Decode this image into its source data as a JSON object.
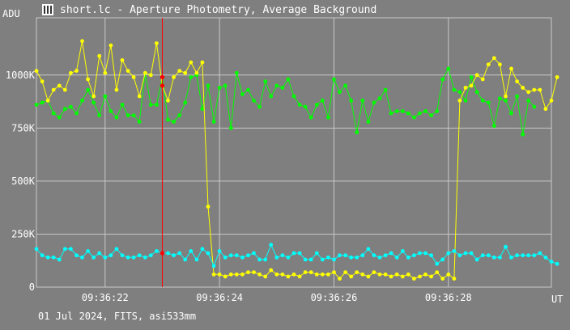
{
  "window": {
    "title": "short.lc - Aperture Photometry, Average Background"
  },
  "footer": {
    "caption": "01 Jul 2024, FITS, asi533mm"
  },
  "colors": {
    "background": "#7f7f7f",
    "grid": "#c8c8c8",
    "marker": "#ff0000"
  },
  "chart_data": {
    "type": "line",
    "ylabel": "ADU",
    "xlabel": "UT",
    "x_ticks": [
      "09:36:22",
      "09:36:24",
      "09:36:26",
      "09:36:28"
    ],
    "y_ticks": [
      "0",
      "250K",
      "500K",
      "750K",
      "1000K"
    ],
    "y_tick_values": [
      0,
      250000,
      500000,
      750000,
      1000000
    ],
    "xlim_s": [
      20.8,
      29.8
    ],
    "ylim": [
      0,
      1270000
    ],
    "x_tick_values_s": [
      22,
      24,
      26,
      28
    ],
    "marker_x_s": 23.0,
    "grid": true,
    "series": [
      {
        "color": "#00ff00",
        "x0_s": 20.8,
        "dx_s": 0.1,
        "values": [
          860000,
          870000,
          880000,
          820000,
          800000,
          840000,
          850000,
          820000,
          880000,
          930000,
          870000,
          810000,
          900000,
          830000,
          800000,
          860000,
          810000,
          810000,
          780000,
          1010000,
          860000,
          860000,
          990000,
          790000,
          780000,
          810000,
          870000,
          990000,
          1000000,
          840000,
          950000,
          780000,
          940000,
          950000,
          750000,
          1010000,
          910000,
          930000,
          880000,
          850000,
          970000,
          900000,
          950000,
          940000,
          980000,
          900000,
          860000,
          850000,
          800000,
          860000,
          880000,
          800000,
          980000,
          920000,
          950000,
          880000,
          730000,
          880000,
          780000,
          870000,
          890000,
          930000,
          820000,
          830000,
          830000,
          820000,
          800000,
          820000,
          830000,
          810000,
          830000,
          980000,
          1030000,
          930000,
          920000,
          880000,
          990000,
          920000,
          880000,
          870000,
          760000,
          890000,
          880000,
          820000,
          900000,
          720000,
          880000,
          850000
        ]
      },
      {
        "color": "#ffff00",
        "x0_s": 20.8,
        "dx_s": 0.1,
        "values": [
          1020000,
          970000,
          880000,
          930000,
          950000,
          930000,
          1010000,
          1020000,
          1160000,
          980000,
          900000,
          1090000,
          1010000,
          1140000,
          930000,
          1070000,
          1020000,
          990000,
          900000,
          1010000,
          1000000,
          1150000,
          950000,
          880000,
          990000,
          1020000,
          1010000,
          1060000,
          1010000,
          1060000,
          380000,
          60000,
          60000,
          50000,
          60000,
          60000,
          60000,
          70000,
          70000,
          60000,
          50000,
          80000,
          60000,
          60000,
          50000,
          60000,
          50000,
          70000,
          70000,
          60000,
          60000,
          60000,
          70000,
          40000,
          70000,
          50000,
          70000,
          60000,
          50000,
          70000,
          60000,
          60000,
          50000,
          60000,
          50000,
          60000,
          40000,
          50000,
          60000,
          50000,
          70000,
          40000,
          60000,
          40000,
          880000,
          940000,
          950000,
          1000000,
          980000,
          1050000,
          1080000,
          1050000,
          900000,
          1030000,
          970000,
          940000,
          920000,
          930000,
          930000,
          840000,
          880000,
          990000
        ]
      },
      {
        "color": "#00ffff",
        "x0_s": 20.8,
        "dx_s": 0.1,
        "values": [
          180000,
          150000,
          140000,
          140000,
          130000,
          180000,
          180000,
          150000,
          140000,
          170000,
          140000,
          160000,
          140000,
          150000,
          180000,
          150000,
          140000,
          140000,
          150000,
          140000,
          150000,
          170000,
          160000,
          160000,
          150000,
          160000,
          130000,
          170000,
          130000,
          180000,
          160000,
          100000,
          170000,
          140000,
          150000,
          150000,
          140000,
          150000,
          160000,
          130000,
          130000,
          200000,
          140000,
          150000,
          140000,
          160000,
          160000,
          130000,
          130000,
          160000,
          130000,
          140000,
          130000,
          150000,
          150000,
          140000,
          140000,
          150000,
          180000,
          150000,
          140000,
          150000,
          160000,
          140000,
          170000,
          140000,
          150000,
          160000,
          160000,
          150000,
          110000,
          130000,
          160000,
          170000,
          150000,
          160000,
          160000,
          130000,
          150000,
          150000,
          140000,
          140000,
          190000,
          140000,
          150000,
          150000,
          150000,
          150000,
          160000,
          140000,
          120000,
          110000
        ]
      }
    ]
  }
}
